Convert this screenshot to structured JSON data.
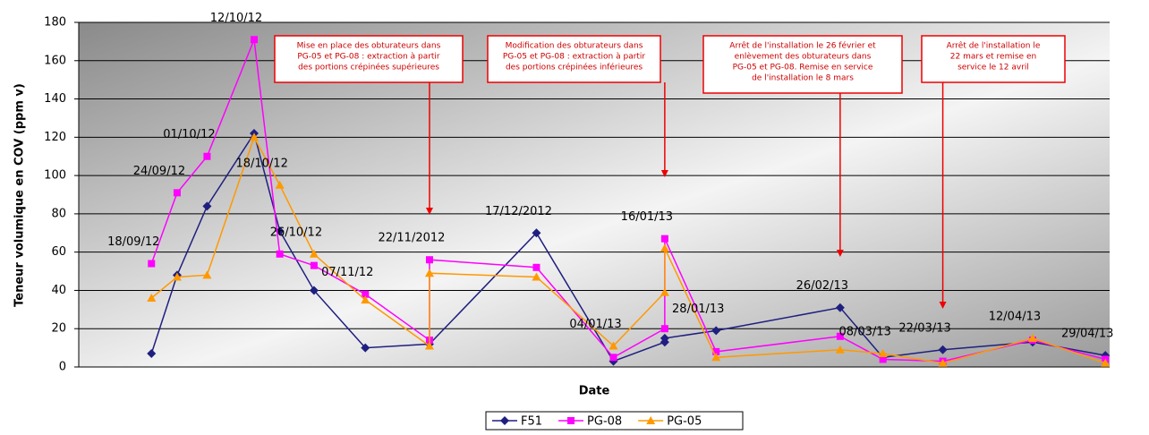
{
  "chart_data": {
    "type": "line",
    "y_label": "Teneur volumique en COV (ppm v)",
    "x_label": "Date",
    "xlim": [
      "2012-09-01",
      "2013-04-30"
    ],
    "ylim": [
      0,
      180
    ],
    "yticks": [
      0,
      20,
      40,
      60,
      80,
      100,
      120,
      140,
      160,
      180
    ],
    "grid": true,
    "series": [
      {
        "name": "F51",
        "color": "#1f1f80",
        "marker": "diamond",
        "x": [
          "2012-09-18",
          "2012-09-24",
          "2012-10-01",
          "2012-10-12",
          "2012-10-18",
          "2012-10-26",
          "2012-11-07",
          "2012-11-22",
          "2012-12-17",
          "2013-01-04",
          "2013-01-16",
          "2013-01-16",
          "2013-01-28",
          "2013-02-26",
          "2013-03-08",
          "2013-03-22",
          "2013-04-12",
          "2013-04-29"
        ],
        "values": [
          7,
          48,
          84,
          122,
          71,
          40,
          10,
          12,
          70,
          3,
          13,
          15,
          19,
          31,
          5,
          9,
          13,
          6
        ]
      },
      {
        "name": "PG-08",
        "color": "#ff00ff",
        "marker": "square",
        "x": [
          "2012-09-18",
          "2012-09-24",
          "2012-10-01",
          "2012-10-12",
          "2012-10-18",
          "2012-10-26",
          "2012-11-07",
          "2012-11-22",
          "2012-11-22",
          "2012-12-17",
          "2013-01-04",
          "2013-01-16",
          "2013-01-16",
          "2013-01-28",
          "2013-02-26",
          "2013-03-08",
          "2013-03-22",
          "2013-04-12",
          "2013-04-29"
        ],
        "values": [
          54,
          91,
          110,
          171,
          59,
          53,
          38,
          14,
          56,
          52,
          5,
          20,
          67,
          8,
          16,
          4,
          3,
          14,
          4
        ]
      },
      {
        "name": "PG-05",
        "color": "#ff9900",
        "marker": "triangle",
        "x": [
          "2012-09-18",
          "2012-09-24",
          "2012-10-01",
          "2012-10-12",
          "2012-10-18",
          "2012-10-26",
          "2012-11-07",
          "2012-11-22",
          "2012-11-22",
          "2012-12-17",
          "2013-01-04",
          "2013-01-16",
          "2013-01-16",
          "2013-01-28",
          "2013-02-26",
          "2013-03-08",
          "2013-03-22",
          "2013-04-12",
          "2013-04-29"
        ],
        "values": [
          36,
          47,
          48,
          120,
          95,
          59,
          35,
          11,
          49,
          47,
          11,
          39,
          62,
          5,
          9,
          7,
          2,
          15,
          2
        ]
      }
    ],
    "point_labels": [
      {
        "text": "18/09/12",
        "x": "2012-09-18"
      },
      {
        "text": "24/09/12",
        "x": "2012-09-24"
      },
      {
        "text": "01/10/12",
        "x": "2012-10-01"
      },
      {
        "text": "12/10/12",
        "x": "2012-10-12"
      },
      {
        "text": "18/10/12",
        "x": "2012-10-18"
      },
      {
        "text": "26/10/12",
        "x": "2012-10-26"
      },
      {
        "text": "07/11/12",
        "x": "2012-11-07"
      },
      {
        "text": "22/11/2012",
        "x": "2012-11-22"
      },
      {
        "text": "17/12/2012",
        "x": "2012-12-17"
      },
      {
        "text": "04/01/13",
        "x": "2013-01-04"
      },
      {
        "text": "16/01/13",
        "x": "2013-01-16"
      },
      {
        "text": "28/01/13",
        "x": "2013-01-28"
      },
      {
        "text": "26/02/13",
        "x": "2013-02-26"
      },
      {
        "text": "08/03/13",
        "x": "2013-03-08"
      },
      {
        "text": "22/03/13",
        "x": "2013-03-22"
      },
      {
        "text": "12/04/13",
        "x": "2013-04-12"
      },
      {
        "text": "29/04/13",
        "x": "2013-04-29"
      }
    ],
    "callouts": [
      {
        "x": "2012-11-22",
        "lines": [
          "Mise en place des obturateurs dans",
          "PG-05 et PG-08 : extraction à partir",
          "des portions crépinées supérieures"
        ]
      },
      {
        "x": "2013-01-16",
        "lines": [
          "Modification des obturateurs dans",
          "PG-05 et PG-08 : extraction à partir",
          "des portions crépinées inférieures"
        ]
      },
      {
        "x": "2013-02-26",
        "lines": [
          "Arrêt de l'installation le 26 février et",
          "enlèvement des obturateurs dans",
          "PG-05 et PG-08. Remise en service",
          "de l'installation le 8 mars"
        ]
      },
      {
        "x": "2013-03-22",
        "lines": [
          "Arrêt de l'installation le",
          "22 mars et remise en",
          "service le 12 avril"
        ]
      }
    ]
  }
}
